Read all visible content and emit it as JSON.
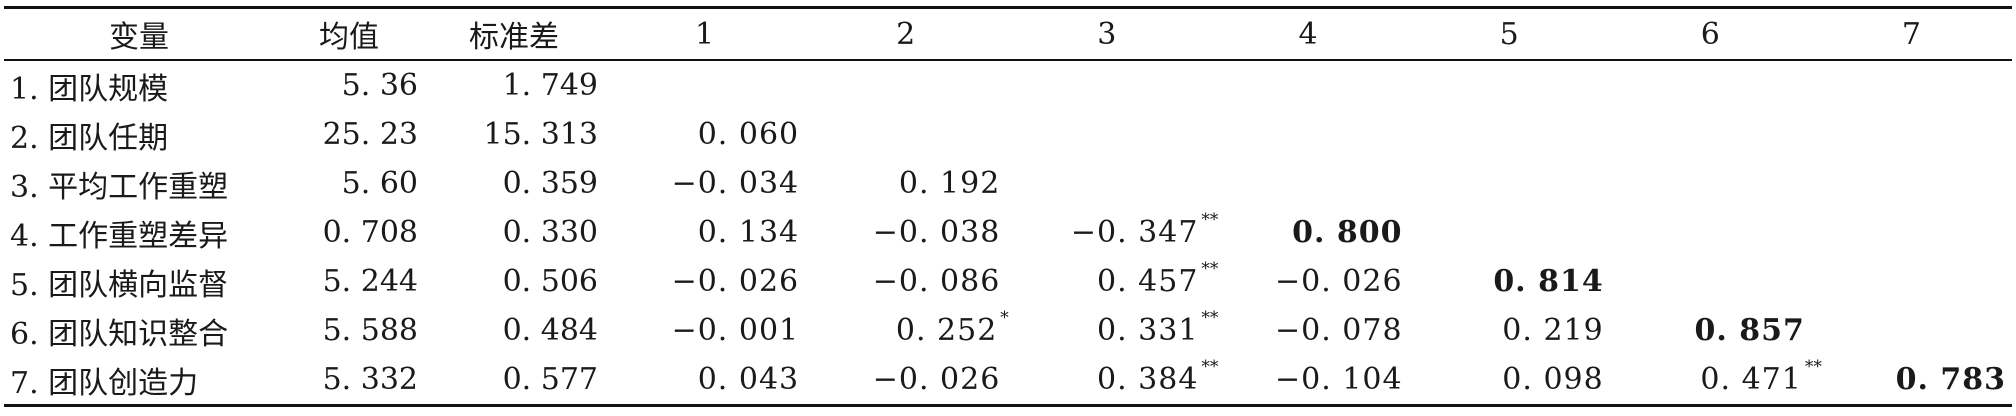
{
  "table": {
    "headers": [
      "变量",
      "均值",
      "标准差",
      "1",
      "2",
      "3",
      "4",
      "5",
      "6",
      "7"
    ],
    "rows": [
      {
        "label": "1. 团队规模",
        "mean": "5. 36",
        "sd": "1. 749",
        "cells": []
      },
      {
        "label": "2. 团队任期",
        "mean": "25. 23",
        "sd": "15. 313",
        "cells": [
          {
            "v": "0. 060",
            "sig": "",
            "bold": false
          }
        ]
      },
      {
        "label": "3. 平均工作重塑",
        "mean": "5. 60",
        "sd": "0. 359",
        "cells": [
          {
            "v": "−0. 034",
            "sig": "",
            "bold": false
          },
          {
            "v": "0. 192",
            "sig": "",
            "bold": false
          }
        ]
      },
      {
        "label": "4. 工作重塑差异",
        "mean": "0. 708",
        "sd": "0. 330",
        "cells": [
          {
            "v": "0. 134",
            "sig": "",
            "bold": false
          },
          {
            "v": "−0. 038",
            "sig": "",
            "bold": false
          },
          {
            "v": "−0. 347",
            "sig": "**",
            "bold": false
          },
          {
            "v": "0. 800",
            "sig": "",
            "bold": true
          }
        ]
      },
      {
        "label": "5. 团队横向监督",
        "mean": "5. 244",
        "sd": "0. 506",
        "cells": [
          {
            "v": "−0. 026",
            "sig": "",
            "bold": false
          },
          {
            "v": "−0. 086",
            "sig": "",
            "bold": false
          },
          {
            "v": "0. 457",
            "sig": "**",
            "bold": false
          },
          {
            "v": "−0. 026",
            "sig": "",
            "bold": false
          },
          {
            "v": "0. 814",
            "sig": "",
            "bold": true
          }
        ]
      },
      {
        "label": "6. 团队知识整合",
        "mean": "5. 588",
        "sd": "0. 484",
        "cells": [
          {
            "v": "−0. 001",
            "sig": "",
            "bold": false
          },
          {
            "v": "0. 252",
            "sig": "*",
            "bold": false
          },
          {
            "v": "0. 331",
            "sig": "**",
            "bold": false
          },
          {
            "v": "−0. 078",
            "sig": "",
            "bold": false
          },
          {
            "v": "0. 219",
            "sig": "",
            "bold": false
          },
          {
            "v": "0. 857",
            "sig": "",
            "bold": true
          }
        ]
      },
      {
        "label": "7. 团队创造力",
        "mean": "5. 332",
        "sd": "0. 577",
        "cells": [
          {
            "v": "0. 043",
            "sig": "",
            "bold": false
          },
          {
            "v": "−0. 026",
            "sig": "",
            "bold": false
          },
          {
            "v": "0. 384",
            "sig": "**",
            "bold": false
          },
          {
            "v": "−0. 104",
            "sig": "",
            "bold": false
          },
          {
            "v": "0. 098",
            "sig": "",
            "bold": false
          },
          {
            "v": "0. 471",
            "sig": "**",
            "bold": false
          },
          {
            "v": "0. 783",
            "sig": "",
            "bold": true
          }
        ]
      }
    ]
  }
}
